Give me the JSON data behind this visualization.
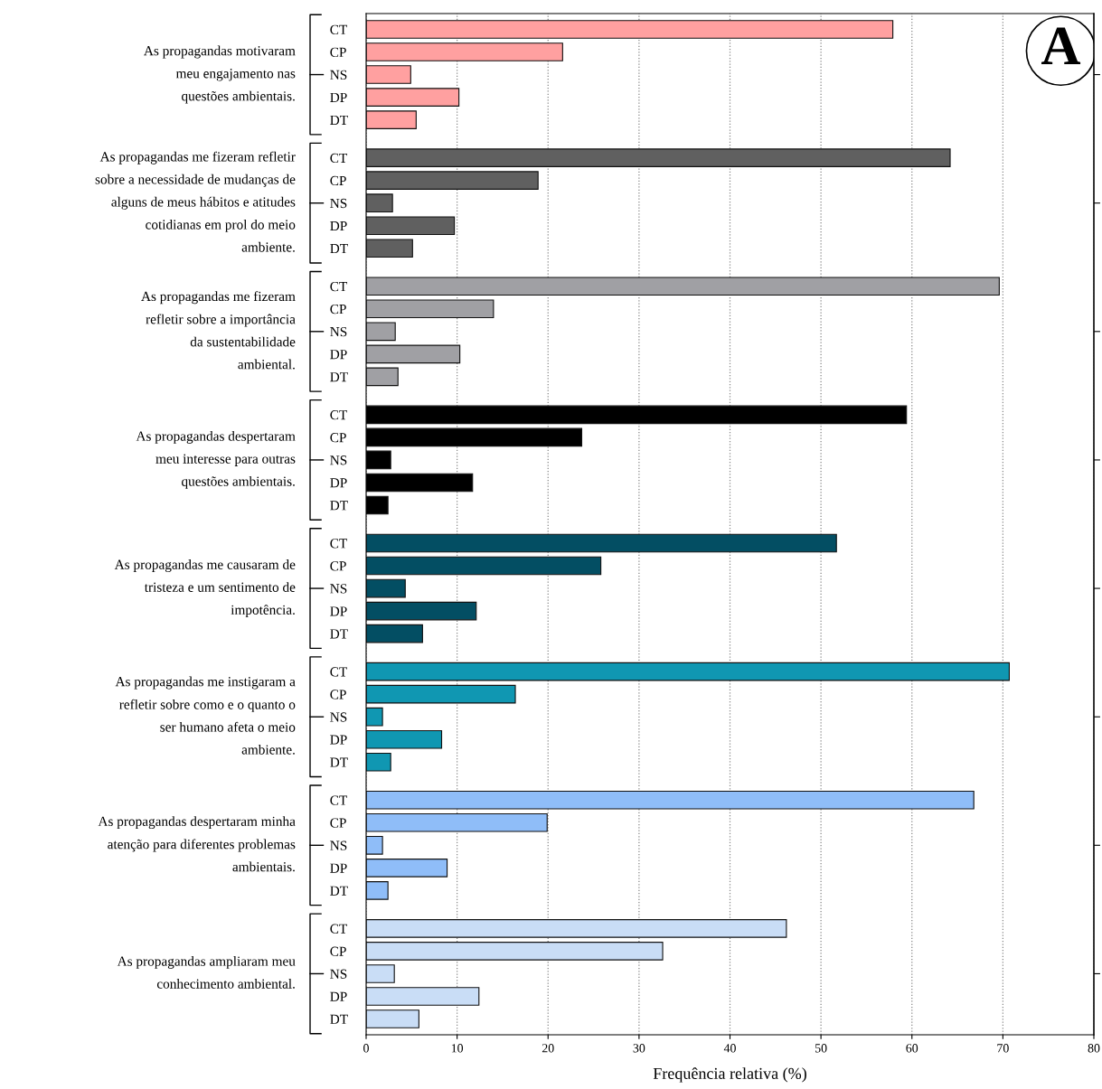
{
  "chart_data": {
    "type": "bar",
    "orientation": "horizontal",
    "title": "A",
    "xlabel": "Frequência relativa (%)",
    "categories": [
      "CT",
      "CP",
      "NS",
      "DP",
      "DT",
      "CT",
      "CP",
      "NS",
      "DP",
      "DT",
      "CT",
      "CP",
      "NS",
      "DP",
      "DT",
      "CT",
      "CP",
      "NS",
      "DP",
      "DT",
      "CT",
      "CP",
      "NS",
      "DP",
      "DT",
      "CT",
      "CP",
      "NS",
      "DP",
      "DT",
      "CT",
      "CP",
      "NS",
      "DP",
      "DT",
      "CT",
      "CP",
      "NS",
      "DP",
      "DT"
    ],
    "values": [
      57.9,
      21.6,
      4.9,
      10.2,
      5.5,
      64.2,
      18.9,
      2.9,
      9.7,
      5.1,
      69.6,
      14.0,
      3.2,
      10.3,
      3.5,
      59.4,
      23.7,
      2.7,
      11.7,
      2.4,
      51.7,
      25.8,
      4.3,
      12.1,
      6.2,
      70.7,
      16.4,
      1.8,
      8.3,
      2.7,
      66.8,
      19.9,
      1.8,
      8.9,
      2.4,
      46.2,
      32.6,
      3.1,
      12.4,
      5.8
    ],
    "colors": [
      "#ffa0a0",
      "#ffa0a0",
      "#ffa0a0",
      "#ffa0a0",
      "#ffa0a0",
      "#606060",
      "#606060",
      "#606060",
      "#606060",
      "#606060",
      "#a0a0a4",
      "#a0a0a4",
      "#a0a0a4",
      "#a0a0a4",
      "#a0a0a4",
      "#000000",
      "#000000",
      "#000000",
      "#000000",
      "#000000",
      "#034e63",
      "#034e63",
      "#034e63",
      "#034e63",
      "#034e63",
      "#1097b2",
      "#1097b2",
      "#1097b2",
      "#1097b2",
      "#1097b2",
      "#8fbdf8",
      "#8fbdf8",
      "#8fbdf8",
      "#8fbdf8",
      "#8fbdf8",
      "#c9ddf6",
      "#c9ddf6",
      "#c9ddf6",
      "#c9ddf6",
      "#c9ddf6"
    ],
    "annotations": [
      "As propagandas motivaram\nmeu engajamento nas\nquestões ambientais.",
      "As propagandas me fizeram refletir\nsobre a necessidade de mudanças de\nalguns de meus hábitos e atitudes\ncotidianas em prol do meio\nambiente.",
      "As propagandas me fizeram\nrefletir sobre a importância\nda sustentabilidade\nambiental.",
      "As propagandas despertaram\nmeu interesse para outras\nquestões ambientais.",
      "As propagandas me causaram de\ntristeza e um sentimento de\nimpotência.",
      "As propagandas me instigaram a\nrefletir sobre como e o quanto o\nser humano afeta o meio\nambiente.",
      "As propagandas despertaram minha\natenção para diferentes problemas\nambientais.",
      "As propagandas ampliaram meu\nconhecimento ambiental."
    ],
    "xlim": [
      0,
      80
    ],
    "xticks": [
      0,
      10,
      20,
      30,
      40,
      50,
      60,
      70,
      80
    ],
    "grid": "x"
  }
}
